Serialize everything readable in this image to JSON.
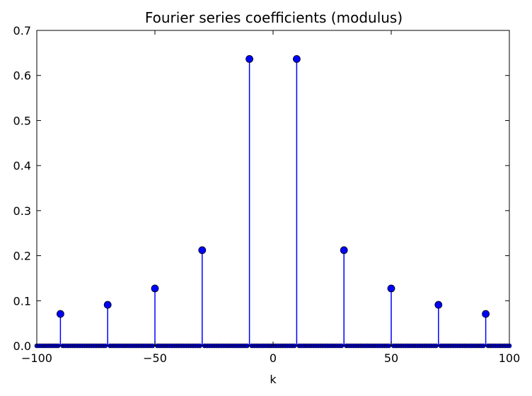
{
  "chart_data": {
    "type": "stem",
    "title": "Fourier series coefficients (modulus)",
    "xlabel": "k",
    "ylabel": "",
    "xlim": [
      -100,
      100
    ],
    "ylim": [
      0,
      0.7
    ],
    "xticks": [
      -100,
      -50,
      0,
      50,
      100
    ],
    "xtick_labels": [
      "−100",
      "−50",
      "0",
      "50",
      "100"
    ],
    "yticks": [
      0.0,
      0.1,
      0.2,
      0.3,
      0.4,
      0.5,
      0.6,
      0.7
    ],
    "ytick_labels": [
      "0.0",
      "0.1",
      "0.2",
      "0.3",
      "0.4",
      "0.5",
      "0.6",
      "0.7"
    ],
    "grid": false,
    "x_range_all_points": [
      -100,
      100
    ],
    "nonzero_points": [
      {
        "x": -90,
        "y": 0.0707
      },
      {
        "x": -70,
        "y": 0.0909
      },
      {
        "x": -50,
        "y": 0.1273
      },
      {
        "x": -30,
        "y": 0.2122
      },
      {
        "x": -10,
        "y": 0.6366
      },
      {
        "x": 10,
        "y": 0.6366
      },
      {
        "x": 30,
        "y": 0.2122
      },
      {
        "x": 50,
        "y": 0.1273
      },
      {
        "x": 70,
        "y": 0.0909
      },
      {
        "x": 90,
        "y": 0.0707
      }
    ],
    "colors": {
      "stem": "#0000ff",
      "marker": "#0000ff",
      "marker_edge": "#000000",
      "baseline": "#0000ff"
    }
  }
}
